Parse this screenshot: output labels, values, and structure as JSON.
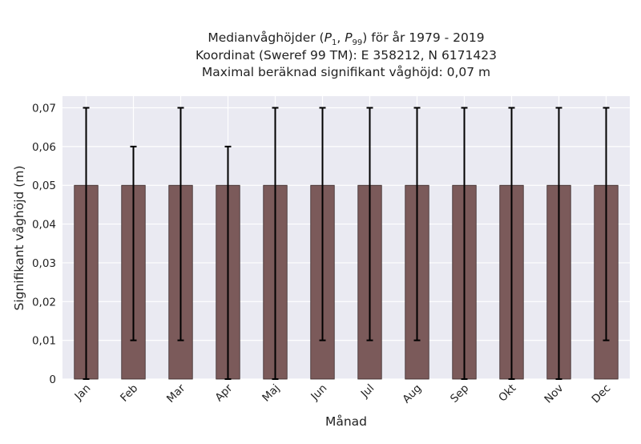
{
  "chart_data": {
    "type": "bar",
    "title_lines": [
      {
        "pre": "Medianvåghöjder (",
        "p1": "P",
        "p1_sub": "1",
        "sep": ", ",
        "p2": "P",
        "p2_sub": "99",
        "post": ") för år 1979 - 2019"
      },
      "Koordinat (Sweref 99 TM): E 358212, N 6171423",
      "Maximal beräknad signifikant våghöjd: 0,07 m"
    ],
    "xlabel": "Månad",
    "ylabel": "Signifikant våghöjd (m)",
    "ylim": [
      0,
      0.073
    ],
    "yticks": [
      0,
      0.01,
      0.02,
      0.03,
      0.04,
      0.05,
      0.06,
      0.07
    ],
    "ytick_labels": [
      "0",
      "0,01",
      "0,02",
      "0,03",
      "0,04",
      "0,05",
      "0,06",
      "0,07"
    ],
    "categories": [
      "Jan",
      "Feb",
      "Mar",
      "Apr",
      "Maj",
      "Jun",
      "Jul",
      "Aug",
      "Sep",
      "Okt",
      "Nov",
      "Dec"
    ],
    "values": [
      0.05,
      0.05,
      0.05,
      0.05,
      0.05,
      0.05,
      0.05,
      0.05,
      0.05,
      0.05,
      0.05,
      0.05
    ],
    "error_low": [
      0.0,
      0.01,
      0.01,
      0.0,
      0.0,
      0.01,
      0.01,
      0.01,
      0.0,
      0.0,
      0.0,
      0.01
    ],
    "error_high": [
      0.07,
      0.06,
      0.07,
      0.06,
      0.07,
      0.07,
      0.07,
      0.07,
      0.07,
      0.07,
      0.07,
      0.07
    ],
    "bar_color": "#7b5a5a",
    "bar_edge_color": "#3a2a2a",
    "errorbar_color": "#000000",
    "plot_background": "#eaeaf2",
    "grid": true,
    "grid_color": "#ffffff"
  }
}
